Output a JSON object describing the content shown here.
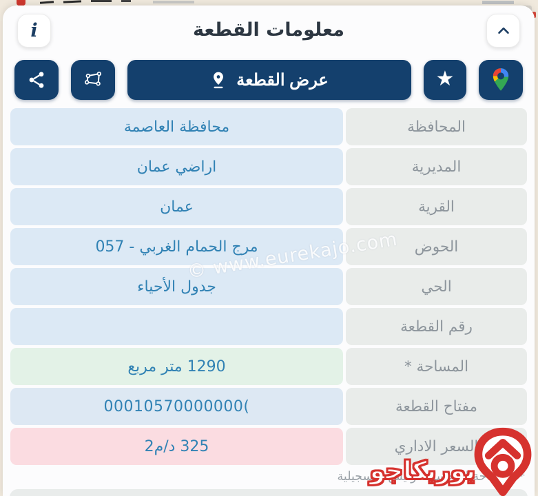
{
  "header": {
    "title": "معلومات القطعة",
    "info_glyph": "i"
  },
  "toolbar": {
    "view_parcel_label": "عرض القطعة",
    "star_glyph": "★"
  },
  "table": {
    "rows": [
      {
        "label": "المحافظة",
        "value": "محافظة العاصمة",
        "style": "blue",
        "value_dir": "rtl"
      },
      {
        "label": "المديرية",
        "value": "اراضي عمان",
        "style": "blue",
        "value_dir": "rtl"
      },
      {
        "label": "القرية",
        "value": "عمان",
        "style": "blue",
        "value_dir": "rtl"
      },
      {
        "label": "الحوض",
        "value": "مرج الحمام الغربي - 057",
        "style": "blue",
        "value_dir": "rtl"
      },
      {
        "label": "الحي",
        "value": "جدول الأحياء",
        "style": "blue",
        "value_dir": "rtl"
      },
      {
        "label": "رقم القطعة",
        "value": "",
        "style": "blue",
        "value_dir": "rtl"
      },
      {
        "label": "المساحة *",
        "value": "1290  متر مربع",
        "style": "green",
        "value_dir": "rtl"
      },
      {
        "label": "مفتاح القطعة",
        "value": "00010570000000(",
        "style": "key",
        "value_dir": "ltr"
      },
      {
        "label": "السعر الاداري",
        "value": "325 د/م2",
        "style": "pink",
        "value_dir": "rtl"
      }
    ]
  },
  "footnote": "* المساحة المحسوبة وليس التسجيلية",
  "watermark": "© www.eurekajo.com",
  "brand": {
    "logo_text": "يوريكاجو"
  },
  "colors": {
    "navy": "#14406D",
    "value_text": "#3182B4",
    "label_text": "#8D959C",
    "value_bg_blue": "#DCE9F5",
    "value_bg_green": "#E3F2E7",
    "value_bg_key": "#DDE8F3",
    "value_bg_pink": "#FBDCE1",
    "label_bg": "#E9ECEA",
    "logo_red": "#E03034",
    "maps_blue": "#4285F4",
    "maps_red": "#EA4335",
    "maps_yellow": "#FBBC04",
    "maps_green": "#34A853"
  }
}
